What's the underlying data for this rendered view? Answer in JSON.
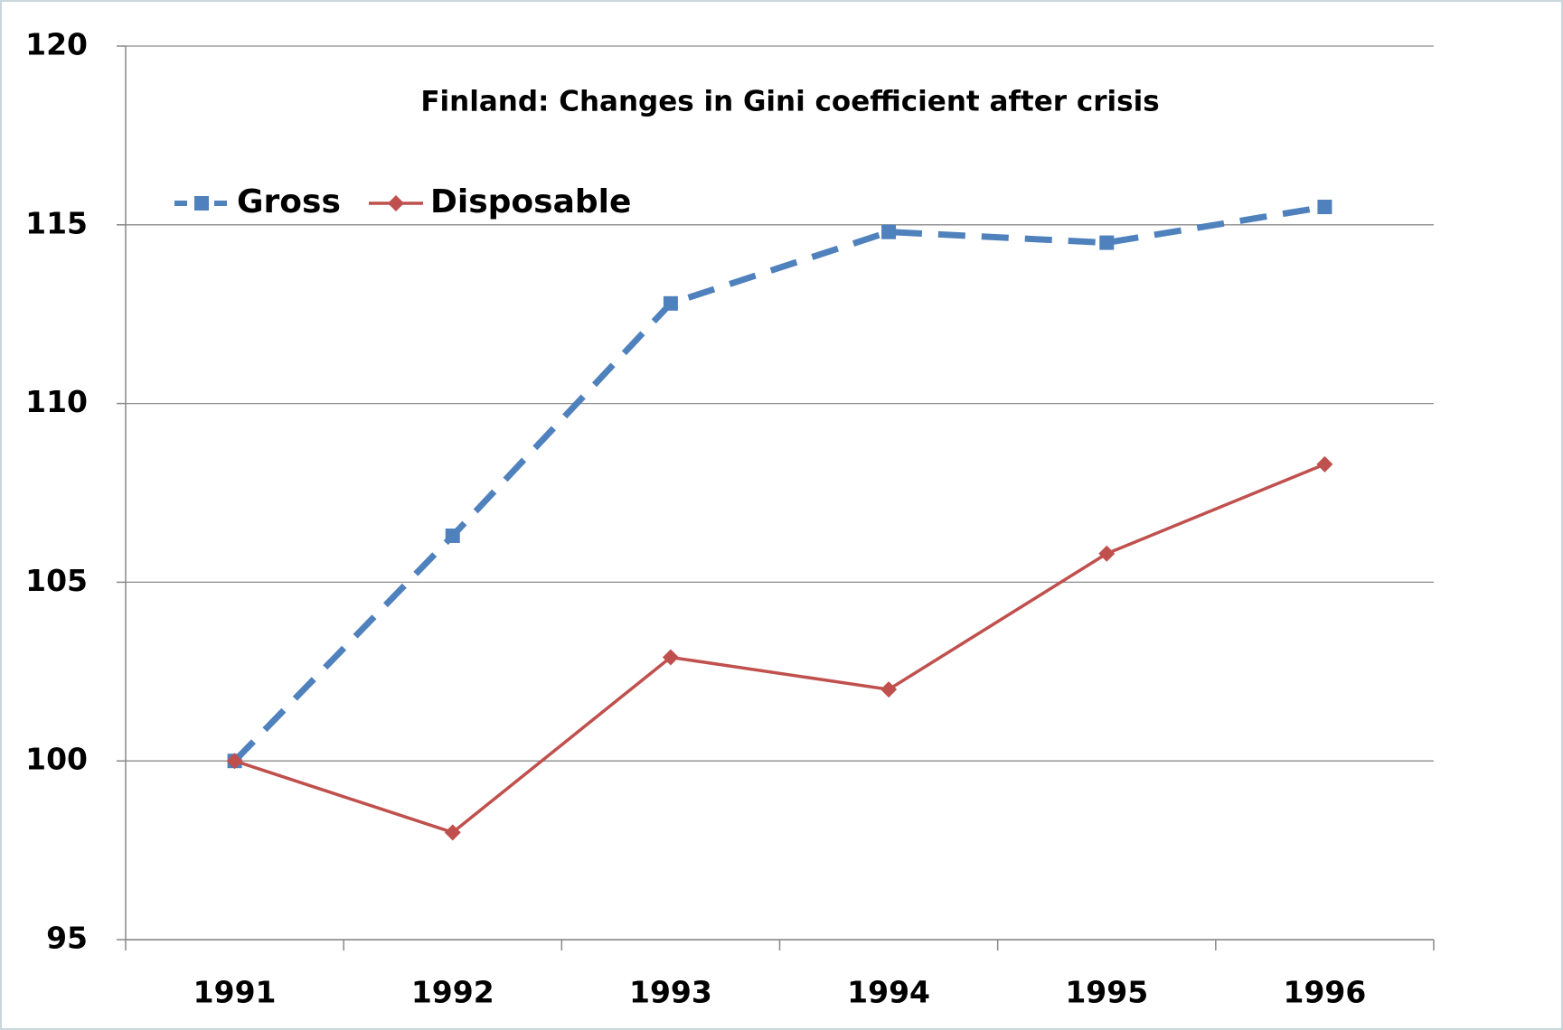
{
  "chart_data": {
    "type": "line",
    "title": "Finland: Changes in Gini coefficient after crisis",
    "categories": [
      "1991",
      "1992",
      "1993",
      "1994",
      "1995",
      "1996"
    ],
    "series": [
      {
        "name": "Gross",
        "color": "#4f81bd",
        "values": [
          100,
          106.3,
          112.8,
          114.8,
          114.5,
          115.5
        ]
      },
      {
        "name": "Disposable",
        "color": "#c0504d",
        "values": [
          100,
          98.0,
          102.9,
          102.0,
          105.8,
          108.3
        ]
      }
    ],
    "ylim": [
      95,
      120
    ],
    "yticks": [
      95,
      100,
      105,
      110,
      115,
      120
    ],
    "grid": true,
    "legend": "top-left"
  }
}
